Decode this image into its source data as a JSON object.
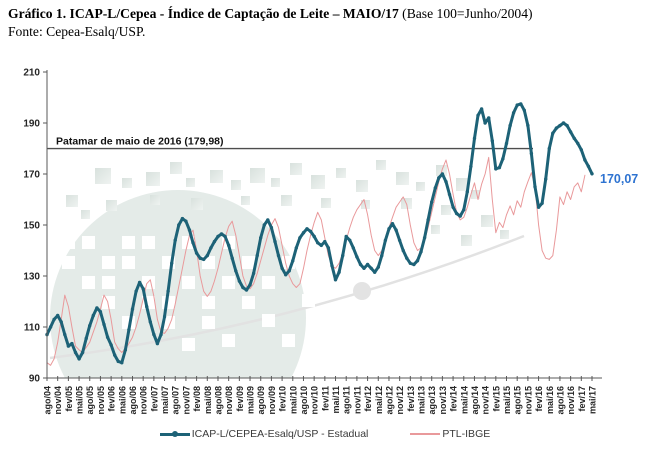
{
  "title": {
    "main": "Gráfico 1. ICAP-L/Cepea - Índice de Captação de Leite – MAIO/17",
    "paren": " (Base 100=Junho/2004)",
    "source": "Fonte: Cepea-Esalq/USP."
  },
  "chart_data": {
    "type": "line",
    "title": "",
    "xlabel": "",
    "ylabel": "",
    "ylim": [
      90,
      210
    ],
    "y_ticks": [
      90,
      110,
      130,
      150,
      170,
      190,
      210
    ],
    "grid": false,
    "legend_position": "bottom-center",
    "x_tick_step_months": 3,
    "x_tick_labels": [
      "ago/04",
      "nov/04",
      "fev/05",
      "mai/05",
      "ago/05",
      "nov/05",
      "fev/06",
      "mai/06",
      "ago/06",
      "nov/06",
      "fev/07",
      "mai/07",
      "ago/07",
      "nov/07",
      "fev/08",
      "mai/08",
      "ago/08",
      "nov/08",
      "fev/09",
      "mai/09",
      "ago/09",
      "nov/09",
      "fev/10",
      "mai/10",
      "ago/10",
      "nov/10",
      "fev/11",
      "mai/11",
      "ago/11",
      "nov/11",
      "fev/12",
      "mai/12",
      "ago/12",
      "nov/12",
      "fev/13",
      "mai/13",
      "ago/13",
      "nov/13",
      "fev/14",
      "mai/14",
      "ago/14",
      "nov/14",
      "fev/15",
      "mai/15",
      "ago/15",
      "nov/15",
      "fev/16",
      "mai/16",
      "ago/16",
      "nov/16",
      "fev/17",
      "mai/17"
    ],
    "series": [
      {
        "name": "ICAP-L/CEPEA-Esalq/USP - Estadual",
        "color": "#1d6277",
        "line_width": 3,
        "markers": true,
        "start": "ago/04",
        "end": "mai/17",
        "values": [
          107,
          110,
          113,
          114.5,
          112,
          107,
          102.5,
          103.5,
          100,
          97.5,
          100,
          105.5,
          110.5,
          114.5,
          117.5,
          116,
          111,
          106,
          103,
          99,
          96.5,
          96,
          101,
          109,
          117,
          124,
          127.5,
          125,
          118,
          112,
          107,
          103.5,
          107,
          114,
          124,
          135,
          144,
          150,
          152.5,
          151.5,
          148,
          143,
          139,
          137,
          136.5,
          138,
          141,
          143.5,
          145.5,
          146.5,
          145.5,
          142,
          137,
          132,
          128,
          125.5,
          124.5,
          126.5,
          131,
          138,
          145,
          150,
          152,
          149,
          143.5,
          138,
          133,
          130.5,
          132,
          136,
          141,
          145,
          147,
          148.5,
          147.5,
          145.5,
          143,
          142,
          143.5,
          141,
          134,
          128.5,
          131.5,
          138,
          145.5,
          144,
          141,
          137.5,
          134.5,
          133,
          134.5,
          133,
          131.5,
          133.5,
          138,
          144,
          148.5,
          150.5,
          148,
          144,
          140,
          137,
          135,
          134.5,
          136,
          139.5,
          145,
          152,
          159,
          164.5,
          168.5,
          170,
          167,
          162,
          157,
          154.5,
          153.5,
          156,
          163,
          173,
          184,
          193,
          195.5,
          190,
          192,
          183,
          172,
          172.5,
          176,
          182,
          189,
          194,
          197,
          197.5,
          195,
          189,
          178,
          165,
          157,
          158.5,
          168,
          180,
          186,
          188,
          189,
          190,
          189,
          186.5,
          184,
          182,
          179.5,
          175.5,
          173,
          170.07
        ]
      },
      {
        "name": "PTL-IBGE",
        "color": "#e9999b",
        "line_width": 1,
        "markers": false,
        "start": "ago/04",
        "end": "mar/17",
        "values": [
          96,
          95,
          97.5,
          104,
          113,
          122.5,
          118,
          110,
          102.5,
          101,
          100,
          102,
          104,
          108,
          112,
          117,
          122.5,
          120,
          113,
          104,
          101.5,
          100,
          101.5,
          103.5,
          106,
          110,
          115,
          121,
          127,
          128.5,
          122,
          113,
          108,
          107.5,
          109.5,
          113,
          119,
          126,
          133,
          140,
          146,
          148,
          140,
          130,
          124,
          122,
          124,
          128,
          133,
          139,
          145,
          149.5,
          151.5,
          146,
          138,
          130,
          126,
          125,
          127,
          131,
          136,
          141,
          146,
          150,
          152.5,
          149,
          142,
          135,
          130,
          127,
          125.5,
          127,
          133,
          140,
          146,
          151,
          155,
          152,
          145,
          138,
          134,
          133,
          135,
          139,
          144,
          149,
          153,
          156,
          158,
          160,
          154,
          146,
          140,
          138,
          140,
          144,
          149,
          153,
          157,
          159,
          161,
          158,
          150,
          143,
          140,
          141,
          144,
          149,
          155,
          161,
          167,
          172,
          175.5,
          170,
          162,
          155,
          152,
          153,
          157,
          162,
          166.5,
          160,
          166,
          170,
          176.5,
          160,
          147,
          151,
          149,
          154,
          157.5,
          154,
          159.5,
          157,
          163,
          167,
          170.5,
          165,
          150,
          140,
          137,
          136.5,
          138,
          148,
          161,
          158,
          163,
          160,
          165,
          166.5,
          163,
          169.5
        ]
      }
    ],
    "annotations": {
      "patamar_line": {
        "label": "Patamar de maio de 2016 (179,98)",
        "value": 179.98,
        "color": "#4d4d4d"
      },
      "last_value": {
        "text": "170,07",
        "value": 170.07,
        "series": "ICAP-L/CEPEA-Esalq/USP - Estadual",
        "color": "#2e73d1"
      }
    }
  }
}
